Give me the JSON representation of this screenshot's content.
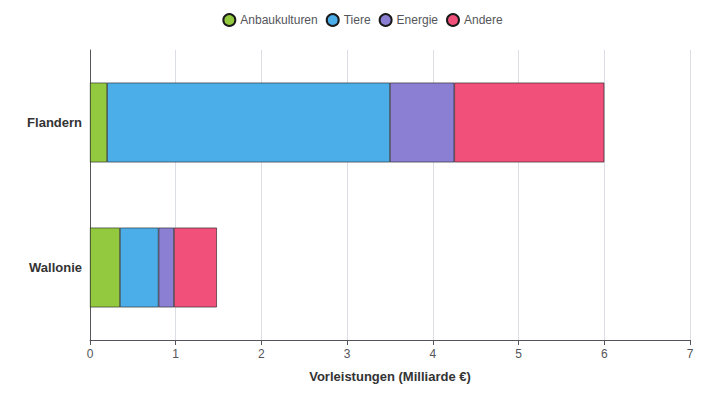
{
  "chart_data": {
    "type": "bar",
    "orientation": "horizontal",
    "stacked": true,
    "categories": [
      "Wallonie",
      "Flandern"
    ],
    "series": [
      {
        "name": "Anbaukulturen",
        "color": "#92C93F",
        "values": [
          0.35,
          0.2
        ]
      },
      {
        "name": "Tiere",
        "color": "#4BAEE8",
        "values": [
          0.45,
          3.3
        ]
      },
      {
        "name": "Energie",
        "color": "#8B7FD4",
        "values": [
          0.18,
          0.75
        ]
      },
      {
        "name": "Andere",
        "color": "#F0507A",
        "values": [
          0.5,
          1.75
        ]
      }
    ],
    "xlabel": "Vorleistungen (Milliarde €)",
    "xlim": [
      0,
      7
    ],
    "xticks": [
      0,
      1,
      2,
      3,
      4,
      5,
      6,
      7
    ],
    "grid": true,
    "legend": "top"
  }
}
